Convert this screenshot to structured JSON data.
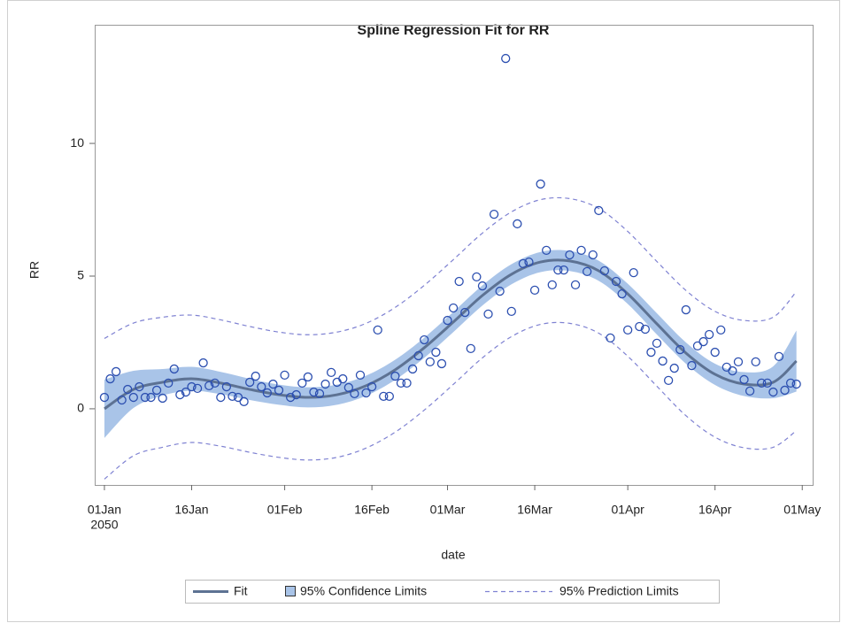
{
  "chart_data": {
    "type": "scatter",
    "title": "Spline Regression Fit for RR",
    "xlabel": "date",
    "ylabel": "RR",
    "color": "#2c4fb0",
    "x": [
      "2050-01-01",
      "2050-01-02",
      "2050-01-03",
      "2050-01-04",
      "2050-01-05",
      "2050-01-06",
      "2050-01-07",
      "2050-01-08",
      "2050-01-09",
      "2050-01-10",
      "2050-01-11",
      "2050-01-12",
      "2050-01-13",
      "2050-01-14",
      "2050-01-15",
      "2050-01-16",
      "2050-01-17",
      "2050-01-18",
      "2050-01-19",
      "2050-01-20",
      "2050-01-21",
      "2050-01-22",
      "2050-01-23",
      "2050-01-24",
      "2050-01-25",
      "2050-01-26",
      "2050-01-27",
      "2050-01-28",
      "2050-01-29",
      "2050-01-30",
      "2050-01-31",
      "2050-02-01",
      "2050-02-02",
      "2050-02-03",
      "2050-02-04",
      "2050-02-05",
      "2050-02-06",
      "2050-02-07",
      "2050-02-08",
      "2050-02-09",
      "2050-02-10",
      "2050-02-11",
      "2050-02-12",
      "2050-02-13",
      "2050-02-14",
      "2050-02-15",
      "2050-02-16",
      "2050-02-17",
      "2050-02-18",
      "2050-02-19",
      "2050-02-20",
      "2050-02-21",
      "2050-02-22",
      "2050-02-23",
      "2050-02-24",
      "2050-02-25",
      "2050-02-26",
      "2050-02-27",
      "2050-02-28",
      "2050-03-01",
      "2050-03-02",
      "2050-03-03",
      "2050-03-04",
      "2050-03-05",
      "2050-03-06",
      "2050-03-07",
      "2050-03-08",
      "2050-03-09",
      "2050-03-10",
      "2050-03-11",
      "2050-03-12",
      "2050-03-13",
      "2050-03-14",
      "2050-03-15",
      "2050-03-16",
      "2050-03-17",
      "2050-03-18",
      "2050-03-19",
      "2050-03-20",
      "2050-03-21",
      "2050-03-22",
      "2050-03-23",
      "2050-03-24",
      "2050-03-25",
      "2050-03-26",
      "2050-03-27",
      "2050-03-28",
      "2050-03-29",
      "2050-03-30",
      "2050-03-31",
      "2050-04-01",
      "2050-04-02",
      "2050-04-03",
      "2050-04-04",
      "2050-04-05",
      "2050-04-06",
      "2050-04-07",
      "2050-04-08",
      "2050-04-09",
      "2050-04-10",
      "2050-04-11",
      "2050-04-12",
      "2050-04-13",
      "2050-04-14",
      "2050-04-15",
      "2050-04-16",
      "2050-04-17",
      "2050-04-18",
      "2050-04-19",
      "2050-04-20",
      "2050-04-21",
      "2050-04-22",
      "2050-04-23",
      "2050-04-24",
      "2050-04-25",
      "2050-04-26",
      "2050-04-27",
      "2050-04-28",
      "2050-04-29",
      "2050-04-30"
    ],
    "values": [
      0.43,
      1.13,
      1.4,
      0.33,
      0.73,
      0.43,
      0.83,
      0.43,
      0.43,
      0.7,
      0.4,
      0.97,
      1.5,
      0.53,
      0.63,
      0.83,
      0.77,
      1.73,
      0.87,
      0.97,
      0.43,
      0.83,
      0.47,
      0.43,
      0.27,
      1.0,
      1.23,
      0.83,
      0.6,
      0.93,
      0.7,
      1.27,
      0.43,
      0.53,
      0.97,
      1.2,
      0.63,
      0.57,
      0.93,
      1.37,
      1.0,
      1.13,
      0.8,
      0.57,
      1.27,
      0.6,
      0.83,
      2.97,
      0.47,
      0.47,
      1.23,
      0.97,
      0.97,
      1.5,
      2.0,
      2.6,
      1.77,
      2.13,
      1.7,
      3.33,
      3.8,
      4.8,
      3.63,
      2.27,
      4.97,
      4.63,
      3.57,
      7.33,
      4.43,
      13.2,
      3.67,
      6.97,
      5.47,
      5.53,
      4.47,
      8.47,
      5.97,
      4.67,
      5.23,
      5.23,
      5.8,
      4.67,
      5.97,
      5.17,
      5.8,
      7.47,
      5.2,
      2.67,
      4.8,
      4.33,
      2.97,
      5.13,
      3.1,
      3.0,
      2.13,
      2.47,
      1.8,
      1.07,
      1.53,
      2.23,
      3.73,
      1.63,
      2.37,
      2.53,
      2.8,
      2.13,
      2.97,
      1.57,
      1.43,
      1.77,
      1.1,
      0.67,
      1.77,
      0.97,
      0.97,
      0.63,
      1.97,
      0.7,
      0.97,
      0.93
    ],
    "fit": {
      "name": "Fit",
      "color": "#5d7293",
      "x": [
        "2050-01-01",
        "2050-01-06",
        "2050-01-11",
        "2050-01-16",
        "2050-01-21",
        "2050-01-26",
        "2050-01-31",
        "2050-02-05",
        "2050-02-10",
        "2050-02-15",
        "2050-02-20",
        "2050-02-25",
        "2050-03-02",
        "2050-03-07",
        "2050-03-12",
        "2050-03-17",
        "2050-03-22",
        "2050-03-27",
        "2050-04-01",
        "2050-04-06",
        "2050-04-11",
        "2050-04-16",
        "2050-04-21",
        "2050-04-26",
        "2050-04-30"
      ],
      "values": [
        0.0,
        0.73,
        1.0,
        1.13,
        0.97,
        0.73,
        0.53,
        0.43,
        0.53,
        0.87,
        1.47,
        2.3,
        3.27,
        4.27,
        5.07,
        5.53,
        5.57,
        5.2,
        4.33,
        3.2,
        2.1,
        1.3,
        0.93,
        1.0,
        1.8
      ]
    },
    "confidence_limits": {
      "name": "95% Confidence Limits",
      "color": "#a9c4e8",
      "lower": [
        -1.1,
        0.03,
        0.5,
        0.68,
        0.55,
        0.33,
        0.15,
        0.05,
        0.15,
        0.49,
        1.09,
        1.92,
        2.89,
        3.89,
        4.69,
        5.15,
        5.19,
        4.82,
        3.95,
        2.8,
        1.7,
        0.9,
        0.48,
        0.4,
        0.65
      ],
      "upper": [
        1.1,
        1.43,
        1.5,
        1.58,
        1.39,
        1.13,
        0.91,
        0.81,
        0.91,
        1.25,
        1.85,
        2.68,
        3.65,
        4.65,
        5.45,
        5.91,
        5.95,
        5.58,
        4.71,
        3.6,
        2.5,
        1.7,
        1.38,
        1.6,
        2.95
      ]
    },
    "prediction_limits": {
      "name": "95% Prediction Limits",
      "color": "#7f82d2",
      "lower": [
        -2.65,
        -1.77,
        -1.45,
        -1.27,
        -1.41,
        -1.64,
        -1.83,
        -1.93,
        -1.83,
        -1.48,
        -0.88,
        -0.05,
        0.92,
        1.92,
        2.72,
        3.18,
        3.22,
        2.85,
        1.98,
        0.85,
        -0.26,
        -1.07,
        -1.47,
        -1.45,
        -0.82
      ],
      "upper": [
        2.65,
        3.23,
        3.45,
        3.53,
        3.35,
        3.1,
        2.89,
        2.79,
        2.89,
        3.22,
        3.82,
        4.65,
        5.62,
        6.62,
        7.42,
        7.88,
        7.92,
        7.55,
        6.68,
        5.55,
        4.46,
        3.67,
        3.33,
        3.45,
        4.42
      ]
    },
    "xlim": [
      "2049-12-30T08:00:00Z",
      "2050-05-02T19:00:00Z"
    ],
    "xticks": [
      {
        "value": "2050-01-01",
        "label": "01Jan",
        "sublabel": "2050"
      },
      {
        "value": "2050-01-16",
        "label": "16Jan"
      },
      {
        "value": "2050-02-01",
        "label": "01Feb"
      },
      {
        "value": "2050-02-16",
        "label": "16Feb"
      },
      {
        "value": "2050-03-01",
        "label": "01Mar"
      },
      {
        "value": "2050-03-16",
        "label": "16Mar"
      },
      {
        "value": "2050-04-01",
        "label": "01Apr"
      },
      {
        "value": "2050-04-16",
        "label": "16Apr"
      },
      {
        "value": "2050-05-01",
        "label": "01May"
      }
    ],
    "ylim": [
      -2.87,
      14.47
    ],
    "yticks": [
      0,
      5,
      10
    ]
  }
}
